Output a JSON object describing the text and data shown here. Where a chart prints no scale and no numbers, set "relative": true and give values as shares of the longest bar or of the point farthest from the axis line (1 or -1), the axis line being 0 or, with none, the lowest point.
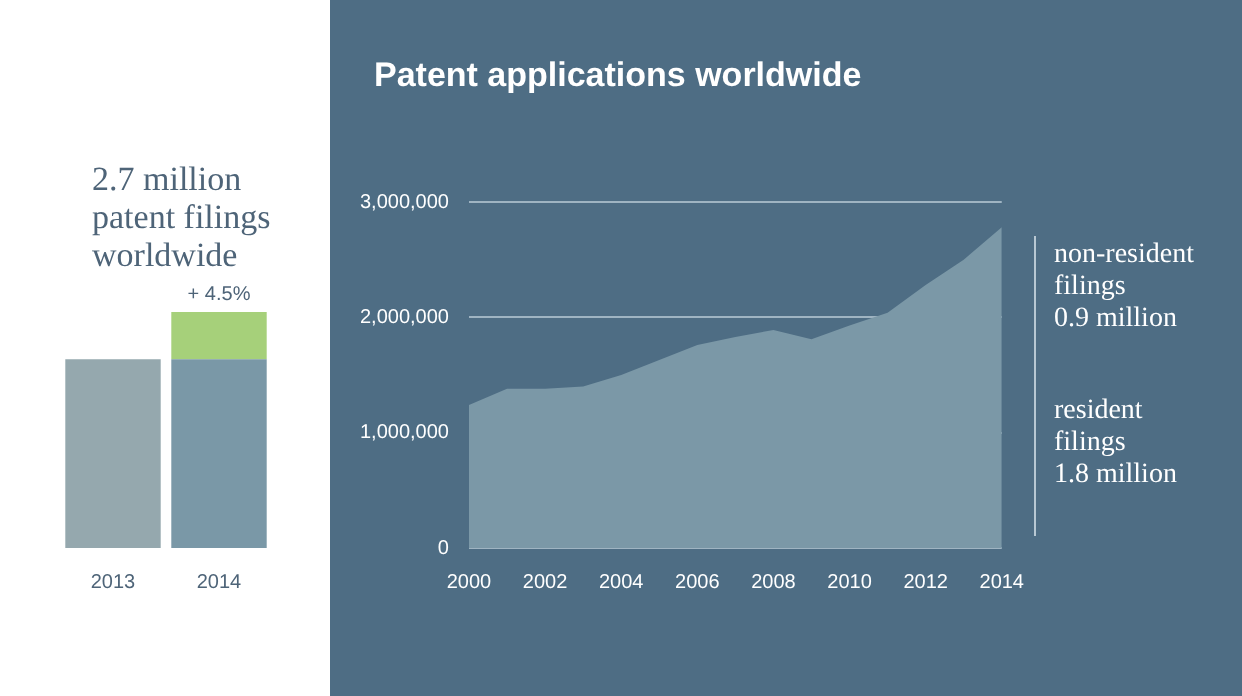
{
  "chart_data": [
    {
      "type": "bar",
      "title": "2.7 million patent filings worldwide",
      "categories": [
        "2013",
        "2014"
      ],
      "relative": true,
      "stacked": true,
      "legend": false,
      "grid": false,
      "series": [
        {
          "colors": [
            "#95a8ae",
            "#7a98a7"
          ],
          "values": [
            0.8,
            0.8
          ]
        },
        {
          "color": "#a6d07a",
          "values": [
            null,
            0.2
          ]
        }
      ],
      "annotations": [
        {
          "text": "+ 4.5%",
          "x": "2014",
          "y": 1
        }
      ]
    },
    {
      "type": "area",
      "title": "Patent applications worldwide",
      "categories": [
        "2000",
        null,
        "2002",
        null,
        "2004",
        null,
        "2006",
        null,
        "2008",
        null,
        "2010",
        null,
        "2012",
        null,
        "2014"
      ],
      "ylim": [
        0,
        3000000
      ],
      "yticks": [
        {
          "value": 0,
          "label": "0"
        },
        {
          "value": 1000000,
          "label": "1,000,000"
        },
        {
          "value": 2000000,
          "label": "2,000,000"
        },
        {
          "value": 3000000,
          "label": "3,000,000"
        }
      ],
      "grid": "y",
      "legend": false,
      "series": [
        {
          "color": "#7b98a7",
          "values": [
            1240000,
            1380000,
            1380000,
            1400000,
            1500000,
            1630000,
            1760000,
            1830000,
            1890000,
            1810000,
            1930000,
            2040000,
            2280000,
            2500000,
            2780000
          ]
        }
      ],
      "annotations": [
        "non-resident\nfilings\n0.9 million",
        "resident\nfilings\n1.8 million"
      ]
    }
  ]
}
